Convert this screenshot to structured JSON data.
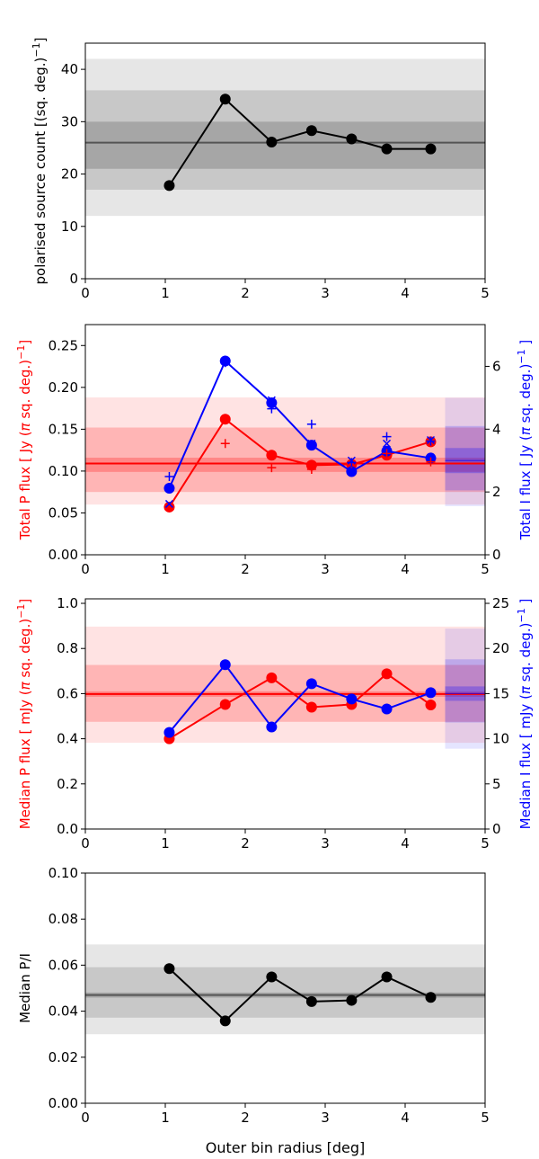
{
  "chart_data": [
    {
      "type": "line",
      "ylabel": "polarised source count [(sq. deg.)$^{-1}$]",
      "xlim": [
        0,
        5
      ],
      "ylim": [
        0,
        45
      ],
      "xticks": [
        0,
        1,
        2,
        3,
        4,
        5
      ],
      "yticks": [
        0,
        10,
        20,
        30,
        40
      ],
      "series": [
        {
          "x": [
            1.05,
            1.75,
            2.33,
            2.83,
            3.33,
            3.77,
            4.32
          ],
          "values": [
            17.8,
            34.3,
            26.1,
            28.3,
            26.7,
            24.8,
            24.8
          ],
          "color": "#000000"
        }
      ],
      "reference": {
        "mean": 26.0,
        "bands": [
          [
            12,
            42
          ],
          [
            17,
            36
          ],
          [
            21,
            30
          ]
        ],
        "color": "#555555"
      }
    },
    {
      "type": "line",
      "ylabel": "Total P flux [ Jy ($\\pi$ sq. deg.)$^{-1}$]",
      "ylabel_right": "Total I flux [ Jy ($\\pi$ sq. deg.)$^{-1}$ ]",
      "xlim": [
        0,
        5
      ],
      "ylim": [
        0,
        0.275
      ],
      "ylim_right": [
        0,
        7.33
      ],
      "xticks": [
        0,
        1,
        2,
        3,
        4,
        5
      ],
      "yticks": [
        "0.00",
        "0.05",
        "0.10",
        "0.15",
        "0.20",
        "0.25"
      ],
      "yticks_right": [
        0,
        2,
        4,
        6
      ],
      "series": [
        {
          "axis": "left",
          "x": [
            1.05,
            1.75,
            2.33,
            2.83,
            3.33,
            3.77,
            4.32
          ],
          "values": [
            0.057,
            0.162,
            0.119,
            0.107,
            0.108,
            0.119,
            0.135
          ],
          "color": "#ff0000"
        },
        {
          "axis": "right",
          "x": [
            1.05,
            1.75,
            2.33,
            2.83,
            3.33,
            3.77,
            4.32
          ],
          "values": [
            2.12,
            6.17,
            4.84,
            3.49,
            2.65,
            3.3,
            3.08
          ],
          "color": "#0000ff"
        }
      ],
      "markers_plus_left": [
        [
          1.75,
          0.133
        ],
        [
          2.33,
          0.104
        ],
        [
          2.83,
          0.102
        ],
        [
          3.33,
          0.109
        ],
        [
          3.77,
          0.121
        ],
        [
          4.32,
          0.111
        ]
      ],
      "markers_plus_right": [
        [
          1.05,
          2.49
        ],
        [
          1.75,
          6.12
        ],
        [
          2.33,
          4.65
        ],
        [
          2.83,
          4.16
        ],
        [
          3.33,
          2.94
        ],
        [
          3.77,
          3.76
        ],
        [
          4.32,
          3.62
        ]
      ],
      "markers_x_right": [
        [
          1.05,
          1.62
        ],
        [
          2.33,
          4.92
        ],
        [
          2.83,
          3.54
        ],
        [
          3.33,
          3.0
        ],
        [
          3.77,
          3.54
        ],
        [
          4.32,
          3.65
        ]
      ],
      "reference_left": {
        "mean": 0.109,
        "bands": [
          [
            0.06,
            0.188
          ],
          [
            0.075,
            0.152
          ],
          [
            0.099,
            0.116
          ]
        ],
        "color": "#ff0000"
      },
      "reference_right": {
        "mean": 3.0,
        "bands": [
          [
            1.55,
            5.0
          ],
          [
            2.05,
            4.1
          ],
          [
            2.6,
            3.4
          ]
        ],
        "color": "#0000ff"
      }
    },
    {
      "type": "line",
      "ylabel": "Median P flux [ mJy ($\\pi$ sq. deg.)$^{-1}$]",
      "ylabel_right": "Median I flux [ mJy ($\\pi$ sq. deg.)$^{-1}$ ]",
      "xlim": [
        0,
        5
      ],
      "ylim": [
        0,
        1.02
      ],
      "ylim_right": [
        0,
        25.5
      ],
      "xticks": [
        0,
        1,
        2,
        3,
        4,
        5
      ],
      "yticks": [
        "0.0",
        "0.2",
        "0.4",
        "0.6",
        "0.8",
        "1.0"
      ],
      "yticks_right": [
        0,
        5,
        10,
        15,
        20,
        25
      ],
      "series": [
        {
          "axis": "left",
          "x": [
            1.05,
            1.75,
            2.33,
            2.83,
            3.33,
            3.77,
            4.32
          ],
          "values": [
            0.4,
            0.552,
            0.67,
            0.54,
            0.552,
            0.688,
            0.55
          ],
          "color": "#ff0000"
        },
        {
          "axis": "right",
          "x": [
            1.05,
            1.75,
            2.33,
            2.83,
            3.33,
            3.77,
            4.32
          ],
          "values": [
            10.7,
            18.2,
            11.3,
            16.1,
            14.4,
            13.3,
            15.1
          ],
          "color": "#0000ff"
        }
      ],
      "reference_left": {
        "mean": 0.598,
        "bands": [
          [
            0.382,
            0.897
          ],
          [
            0.475,
            0.727
          ],
          [
            0.586,
            0.61
          ]
        ],
        "color": "#ff0000"
      },
      "reference_right": {
        "mean": 15.0,
        "bands": [
          [
            8.9,
            22.2
          ],
          [
            11.8,
            18.8
          ],
          [
            14.2,
            15.8
          ]
        ],
        "color": "#0000ff"
      }
    },
    {
      "type": "line",
      "xlabel": "Outer bin radius [deg]",
      "ylabel": "Median P/I",
      "xlim": [
        0,
        5
      ],
      "ylim": [
        0,
        0.1
      ],
      "xticks": [
        0,
        1,
        2,
        3,
        4,
        5
      ],
      "yticks": [
        "0.00",
        "0.02",
        "0.04",
        "0.06",
        "0.08",
        "0.10"
      ],
      "series": [
        {
          "x": [
            1.05,
            1.75,
            2.33,
            2.83,
            3.33,
            3.77,
            4.32
          ],
          "values": [
            0.0585,
            0.0358,
            0.0549,
            0.0442,
            0.0447,
            0.0549,
            0.046
          ],
          "color": "#000000"
        }
      ],
      "reference": {
        "mean": 0.047,
        "bands": [
          [
            0.03,
            0.069
          ],
          [
            0.0372,
            0.0591
          ],
          [
            0.0459,
            0.0481
          ]
        ],
        "color": "#555555"
      }
    }
  ]
}
